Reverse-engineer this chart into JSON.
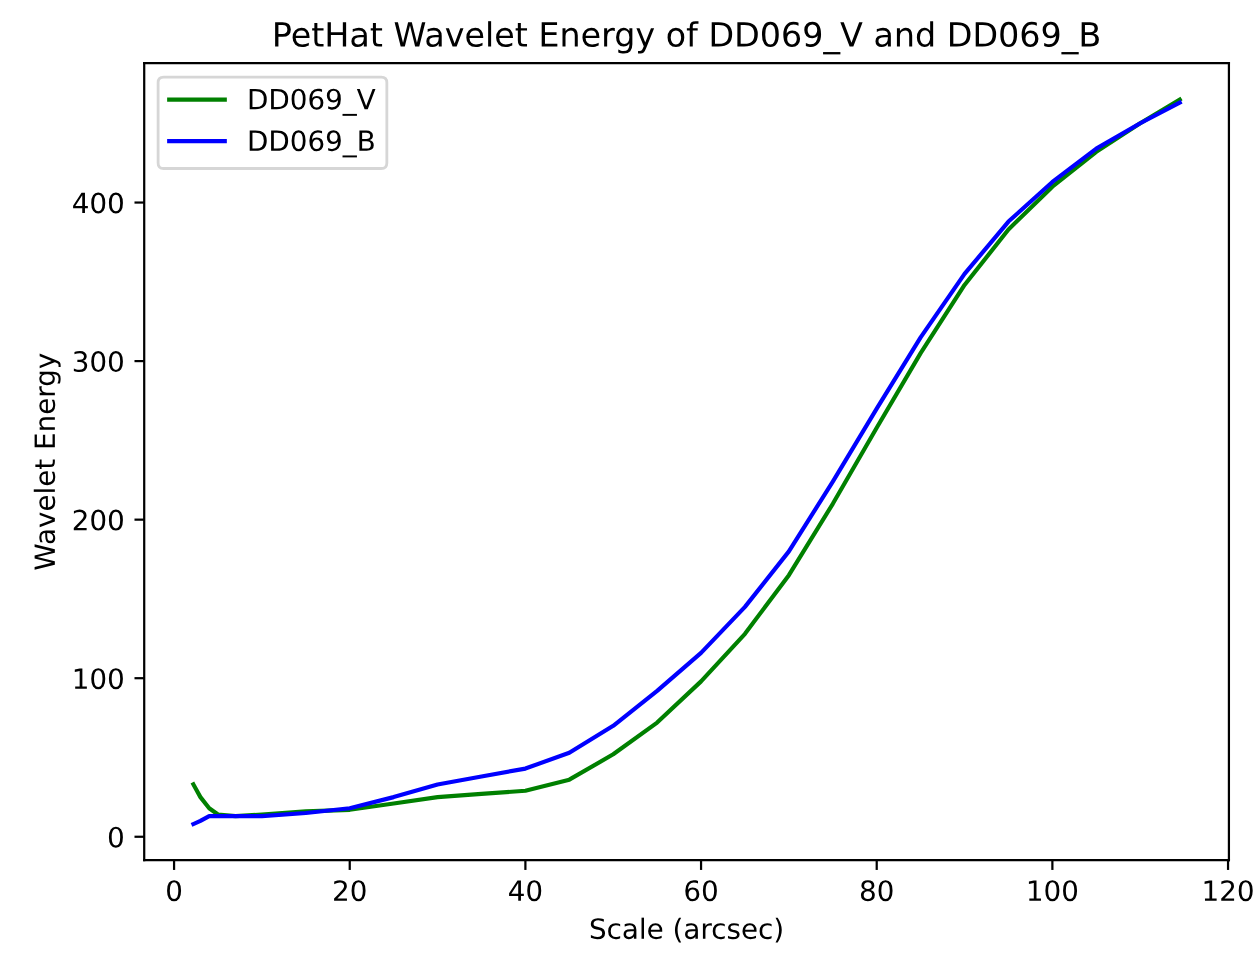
{
  "chart_data": {
    "type": "line",
    "title": "PetHat Wavelet Energy of DD069_V and DD069_B",
    "xlabel": "Scale (arcsec)",
    "ylabel": "Wavelet Energy",
    "xlim": [
      -3.4,
      120.1
    ],
    "ylim": [
      -14.8,
      487.9
    ],
    "xticks": [
      0,
      20,
      40,
      60,
      80,
      100,
      120
    ],
    "yticks": [
      0,
      100,
      200,
      300,
      400
    ],
    "legend": "top left",
    "grid": false,
    "series": [
      {
        "name": "DD069_V",
        "color": "#008000",
        "x": [
          2.2,
          3,
          4,
          5,
          7,
          10,
          15,
          20,
          25,
          30,
          35,
          40,
          45,
          50,
          55,
          60,
          65,
          70,
          75,
          80,
          85,
          90,
          95,
          100,
          105,
          110,
          114.5
        ],
        "values": [
          33,
          25,
          18,
          14,
          13,
          14,
          16,
          17,
          21,
          25,
          27,
          29,
          36,
          52,
          72,
          98,
          128,
          165,
          210,
          258,
          305,
          348,
          383,
          410,
          432,
          450,
          465
        ]
      },
      {
        "name": "DD069_B",
        "color": "#0000ff",
        "x": [
          2.2,
          3,
          4,
          6,
          10,
          15,
          20,
          25,
          30,
          35,
          40,
          45,
          50,
          55,
          60,
          65,
          70,
          75,
          80,
          85,
          90,
          95,
          100,
          105,
          110,
          114.5
        ],
        "values": [
          8,
          10,
          13,
          13,
          13,
          15,
          18,
          25,
          33,
          38,
          43,
          53,
          70,
          92,
          116,
          145,
          180,
          224,
          270,
          315,
          355,
          388,
          413,
          434,
          450,
          463
        ]
      }
    ]
  }
}
